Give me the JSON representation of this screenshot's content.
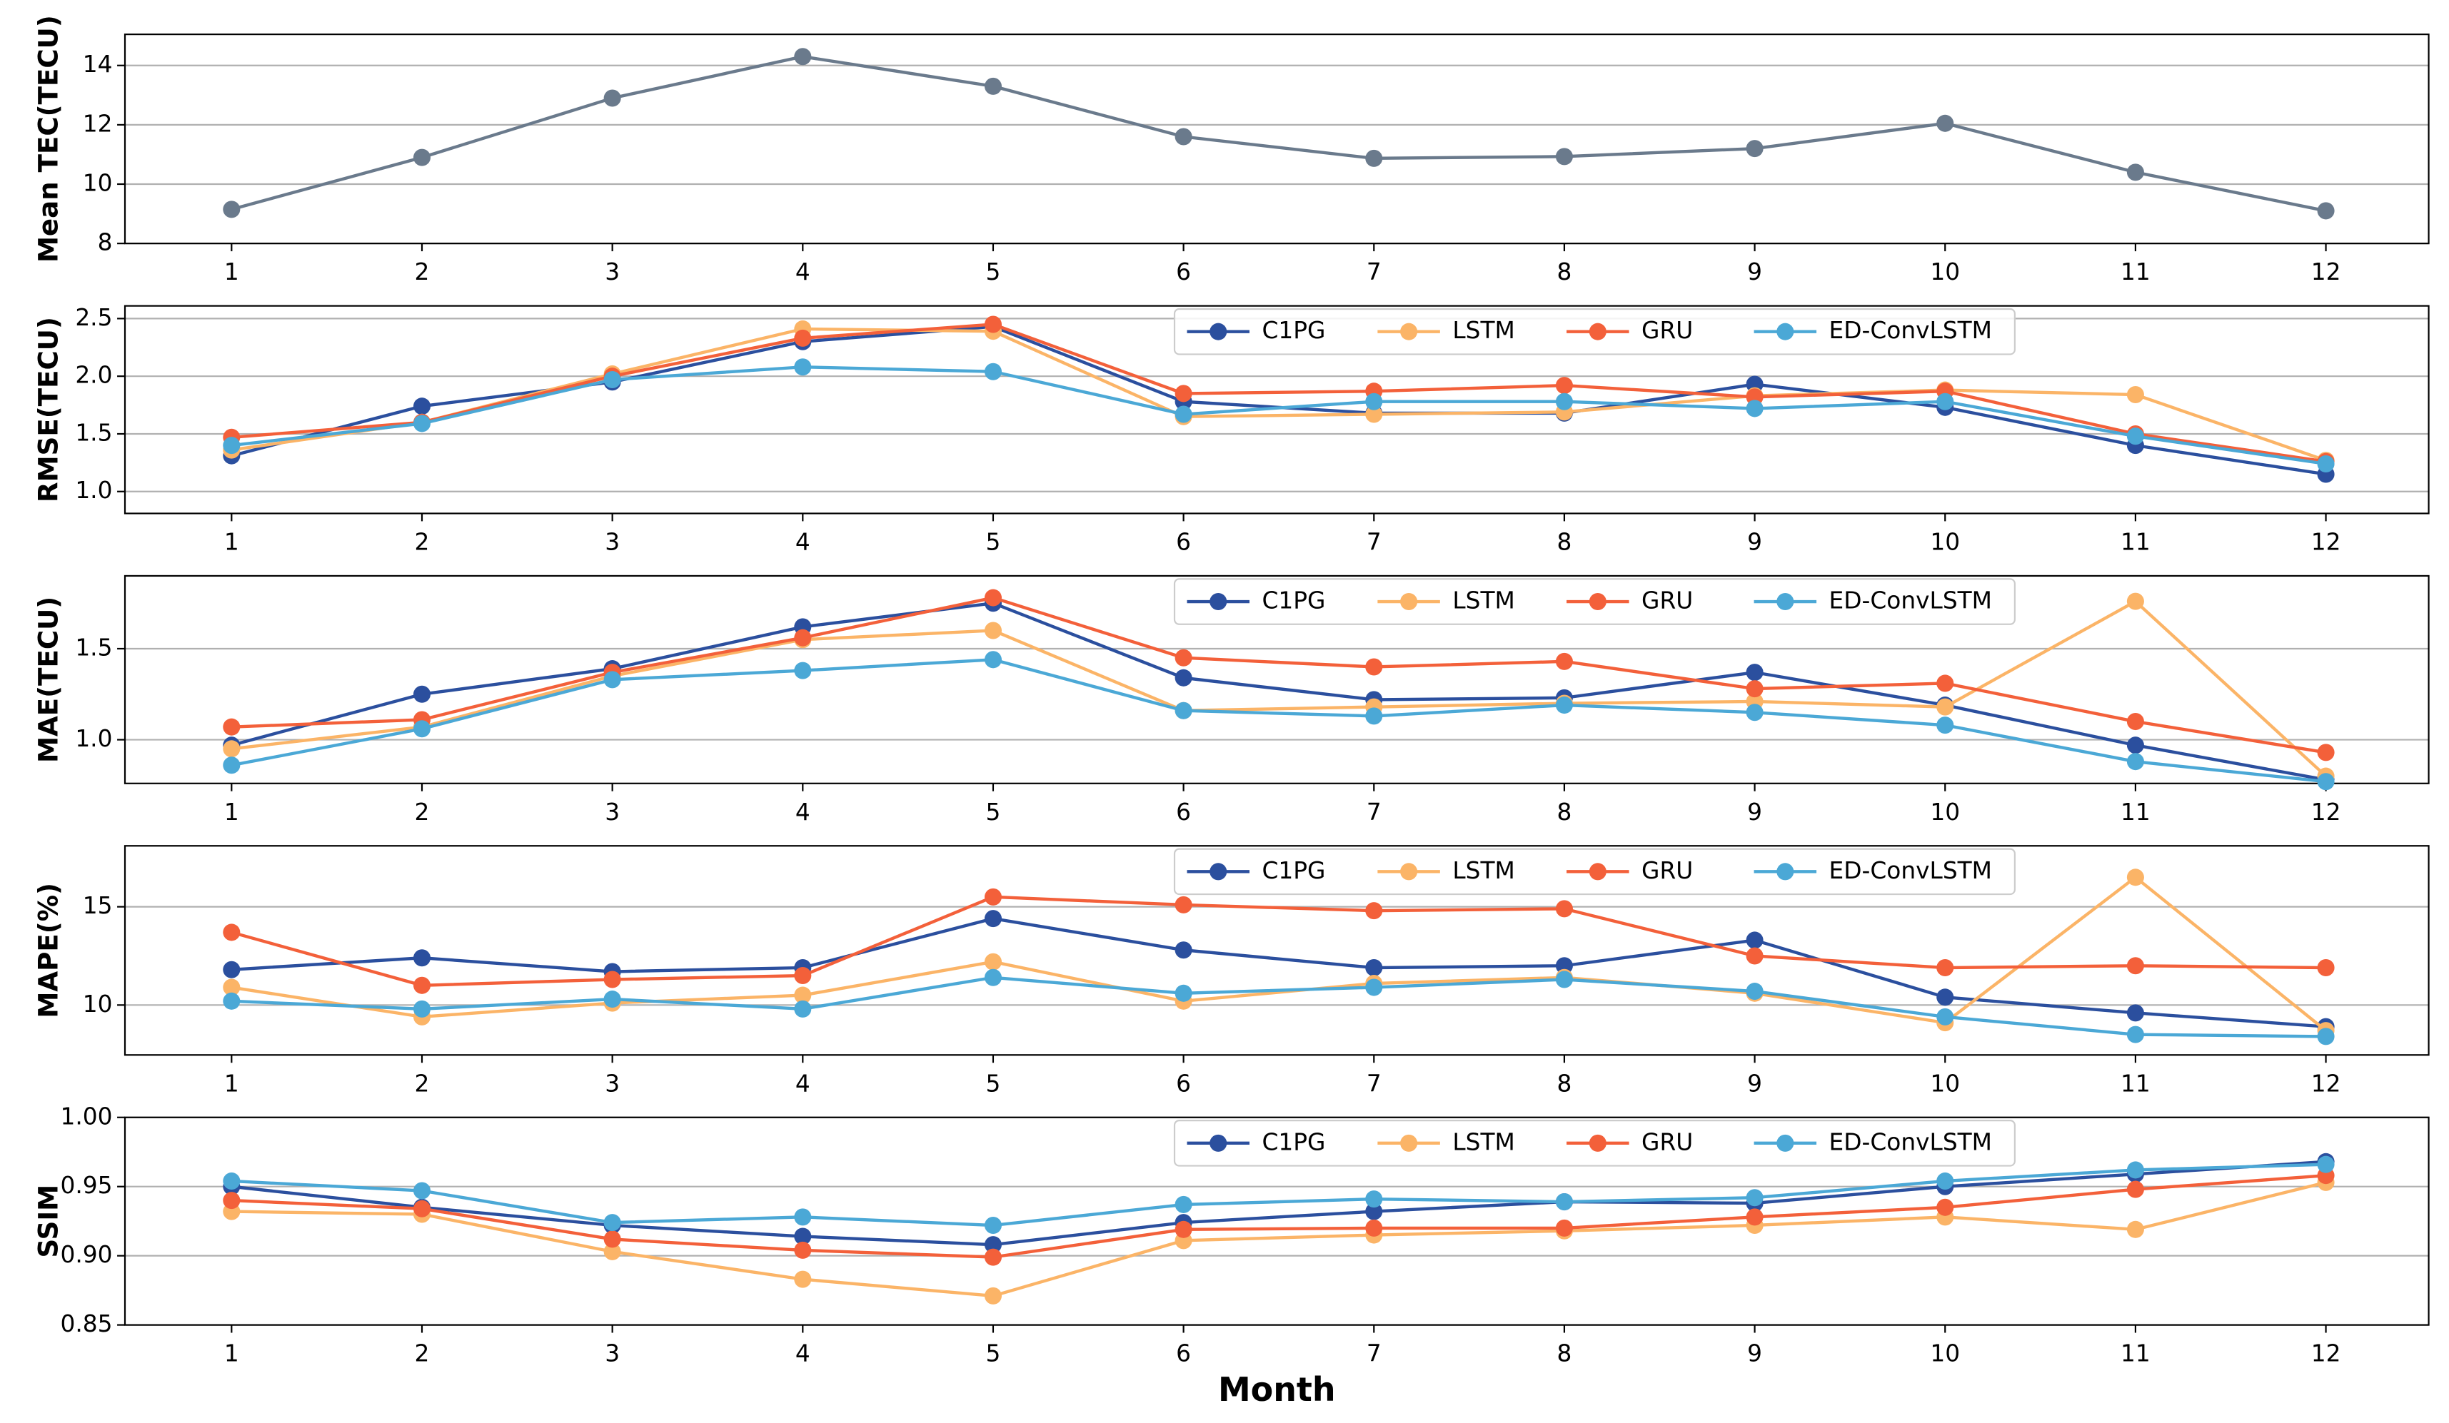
{
  "chart_data": [
    {
      "type": "line",
      "ylabel": "Mean TEC(TECU)",
      "x": [
        1,
        2,
        3,
        4,
        5,
        6,
        7,
        8,
        9,
        10,
        11,
        12
      ],
      "xlim": [
        0.44,
        12.54
      ],
      "xticks": [
        1,
        2,
        3,
        4,
        5,
        6,
        7,
        8,
        9,
        10,
        11,
        12
      ],
      "ylim": [
        8,
        15.05
      ],
      "yticks": [
        8,
        10,
        12,
        14
      ],
      "grid": true,
      "series": [
        {
          "color": "#6a7a8c",
          "values": [
            9.15,
            10.9,
            12.9,
            14.3,
            13.3,
            11.6,
            10.87,
            10.93,
            11.2,
            12.05,
            10.4,
            9.1
          ]
        }
      ]
    },
    {
      "type": "line",
      "ylabel": "RMSE(TECU)",
      "x": [
        1,
        2,
        3,
        4,
        5,
        6,
        7,
        8,
        9,
        10,
        11,
        12
      ],
      "xlim": [
        0.44,
        12.54
      ],
      "xticks": [
        1,
        2,
        3,
        4,
        5,
        6,
        7,
        8,
        9,
        10,
        11,
        12
      ],
      "ylim": [
        0.81,
        2.61
      ],
      "yticks": [
        {
          "value": 1.0,
          "label": "1.0"
        },
        {
          "value": 1.5,
          "label": "1.5"
        },
        {
          "value": 2.0,
          "label": "2.0"
        },
        {
          "value": 2.5,
          "label": "2.5"
        }
      ],
      "grid": true,
      "legend": "upper center",
      "series": [
        {
          "name": "C1PG",
          "color": "#2b4f9e",
          "values": [
            1.31,
            1.74,
            1.95,
            2.3,
            2.43,
            1.78,
            1.68,
            1.68,
            1.93,
            1.73,
            1.4,
            1.15
          ]
        },
        {
          "name": "LSTM",
          "color": "#fbb467",
          "values": [
            1.36,
            1.6,
            2.02,
            2.41,
            2.39,
            1.65,
            1.67,
            1.69,
            1.83,
            1.88,
            1.84,
            1.27
          ]
        },
        {
          "name": "GRU",
          "color": "#f3603a",
          "values": [
            1.47,
            1.6,
            2.0,
            2.33,
            2.45,
            1.85,
            1.87,
            1.92,
            1.82,
            1.87,
            1.5,
            1.26
          ]
        },
        {
          "name": "ED-ConvLSTM",
          "color": "#4ba8d6",
          "values": [
            1.4,
            1.59,
            1.97,
            2.08,
            2.04,
            1.67,
            1.78,
            1.78,
            1.72,
            1.78,
            1.48,
            1.24
          ]
        }
      ]
    },
    {
      "type": "line",
      "ylabel": "MAE(TECU)",
      "x": [
        1,
        2,
        3,
        4,
        5,
        6,
        7,
        8,
        9,
        10,
        11,
        12
      ],
      "xlim": [
        0.44,
        12.54
      ],
      "xticks": [
        1,
        2,
        3,
        4,
        5,
        6,
        7,
        8,
        9,
        10,
        11,
        12
      ],
      "ylim": [
        0.76,
        1.9
      ],
      "yticks": [
        {
          "value": 1.0,
          "label": "1.0"
        },
        {
          "value": 1.5,
          "label": "1.5"
        }
      ],
      "grid": true,
      "legend": "upper center",
      "series": [
        {
          "name": "C1PG",
          "color": "#2b4f9e",
          "values": [
            0.97,
            1.25,
            1.39,
            1.62,
            1.75,
            1.34,
            1.22,
            1.23,
            1.37,
            1.19,
            0.97,
            0.78
          ]
        },
        {
          "name": "LSTM",
          "color": "#fbb467",
          "values": [
            0.95,
            1.07,
            1.35,
            1.55,
            1.6,
            1.16,
            1.18,
            1.2,
            1.21,
            1.18,
            1.76,
            0.8
          ]
        },
        {
          "name": "GRU",
          "color": "#f3603a",
          "values": [
            1.07,
            1.11,
            1.37,
            1.56,
            1.78,
            1.45,
            1.4,
            1.43,
            1.28,
            1.31,
            1.1,
            0.93
          ]
        },
        {
          "name": "ED-ConvLSTM",
          "color": "#4ba8d6",
          "values": [
            0.86,
            1.06,
            1.33,
            1.38,
            1.44,
            1.16,
            1.13,
            1.19,
            1.15,
            1.08,
            0.88,
            0.77
          ]
        }
      ]
    },
    {
      "type": "line",
      "ylabel": "MAPE(%)",
      "x": [
        1,
        2,
        3,
        4,
        5,
        6,
        7,
        8,
        9,
        10,
        11,
        12
      ],
      "xlim": [
        0.44,
        12.54
      ],
      "xticks": [
        1,
        2,
        3,
        4,
        5,
        6,
        7,
        8,
        9,
        10,
        11,
        12
      ],
      "ylim": [
        7.46,
        18.1
      ],
      "yticks": [
        10,
        15
      ],
      "grid": true,
      "legend": "upper center",
      "series": [
        {
          "name": "C1PG",
          "color": "#2b4f9e",
          "values": [
            11.8,
            12.4,
            11.7,
            11.9,
            14.4,
            12.8,
            11.9,
            12.0,
            13.3,
            10.4,
            9.6,
            8.9
          ]
        },
        {
          "name": "LSTM",
          "color": "#fbb467",
          "values": [
            10.9,
            9.4,
            10.1,
            10.5,
            12.2,
            10.2,
            11.1,
            11.4,
            10.6,
            9.1,
            16.5,
            8.7
          ]
        },
        {
          "name": "GRU",
          "color": "#f3603a",
          "values": [
            13.7,
            11.0,
            11.3,
            11.5,
            15.5,
            15.1,
            14.8,
            14.9,
            12.5,
            11.9,
            12.0,
            11.9
          ]
        },
        {
          "name": "ED-ConvLSTM",
          "color": "#4ba8d6",
          "values": [
            10.2,
            9.8,
            10.3,
            9.8,
            11.4,
            10.6,
            10.9,
            11.3,
            10.7,
            9.4,
            8.5,
            8.4
          ]
        }
      ]
    },
    {
      "type": "line",
      "ylabel": "SSIM",
      "xlabel": "Month",
      "x": [
        1,
        2,
        3,
        4,
        5,
        6,
        7,
        8,
        9,
        10,
        11,
        12
      ],
      "xlim": [
        0.44,
        12.54
      ],
      "xticks": [
        1,
        2,
        3,
        4,
        5,
        6,
        7,
        8,
        9,
        10,
        11,
        12
      ],
      "ylim": [
        0.85,
        1.0
      ],
      "yticks": [
        {
          "value": 0.85,
          "label": "0.85"
        },
        {
          "value": 0.9,
          "label": "0.90"
        },
        {
          "value": 0.95,
          "label": "0.95"
        },
        {
          "value": 1.0,
          "label": "1.00"
        }
      ],
      "grid": true,
      "legend": "upper center",
      "series": [
        {
          "name": "C1PG",
          "color": "#2b4f9e",
          "values": [
            0.95,
            0.935,
            0.922,
            0.914,
            0.908,
            0.924,
            0.932,
            0.939,
            0.938,
            0.95,
            0.959,
            0.968
          ]
        },
        {
          "name": "LSTM",
          "color": "#fbb467",
          "values": [
            0.932,
            0.93,
            0.903,
            0.883,
            0.871,
            0.911,
            0.915,
            0.918,
            0.922,
            0.928,
            0.919,
            0.953
          ]
        },
        {
          "name": "GRU",
          "color": "#f3603a",
          "values": [
            0.94,
            0.934,
            0.912,
            0.904,
            0.899,
            0.919,
            0.92,
            0.92,
            0.928,
            0.935,
            0.948,
            0.958
          ]
        },
        {
          "name": "ED-ConvLSTM",
          "color": "#4ba8d6",
          "values": [
            0.954,
            0.947,
            0.924,
            0.928,
            0.922,
            0.937,
            0.941,
            0.939,
            0.942,
            0.954,
            0.962,
            0.966
          ]
        }
      ]
    }
  ]
}
